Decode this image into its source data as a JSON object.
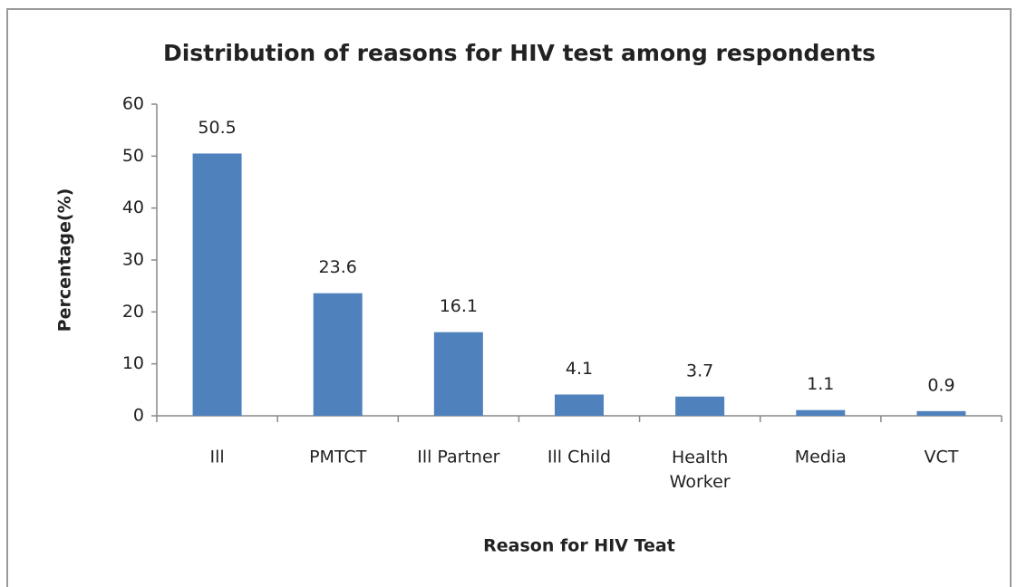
{
  "chart_data": {
    "type": "bar",
    "title": "Distribution of reasons for HIV test among respondents",
    "x_label": "Reason for HIV Teat",
    "y_label": "Percentage(%)",
    "categories": [
      "Ill",
      "PMTCT",
      "Ill Partner",
      "Ill Child",
      "Health Worker",
      "Media",
      "VCT"
    ],
    "values": [
      50.5,
      23.6,
      16.1,
      4.1,
      3.7,
      1.1,
      0.9
    ],
    "color": "#4f81bd",
    "ylim": [
      0,
      60
    ],
    "yticks": [
      0,
      10,
      20,
      30,
      40,
      50,
      60
    ],
    "grid": false
  }
}
